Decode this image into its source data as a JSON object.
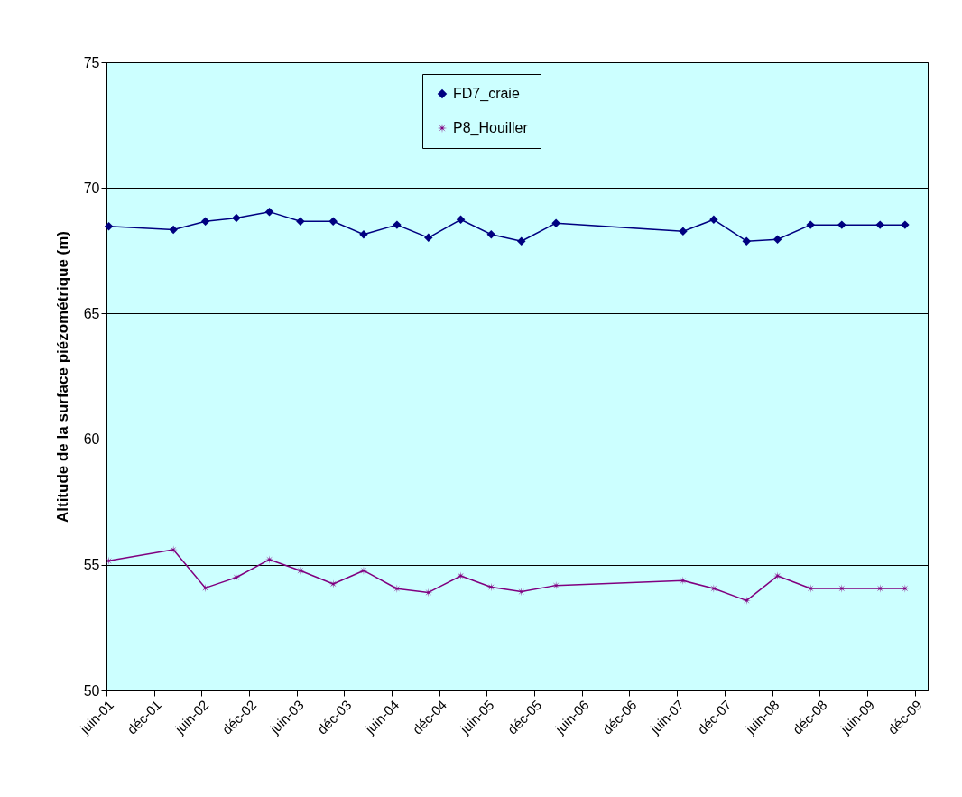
{
  "chart_data": {
    "type": "line",
    "ylabel": "Altitude de la surface piézométrique (m)",
    "x": [
      "2001-06-10",
      "2002-02-13",
      "2002-06-16",
      "2002-10-13",
      "2003-02-17",
      "2003-06-16",
      "2003-10-20",
      "2004-02-14",
      "2004-06-21",
      "2004-10-20",
      "2005-02-21",
      "2005-06-18",
      "2005-10-12",
      "2006-02-22",
      "2007-06-25",
      "2007-10-21",
      "2008-02-24",
      "2008-06-22",
      "2008-10-27",
      "2009-02-24",
      "2009-07-21",
      "2009-10-25"
    ],
    "series": [
      {
        "name": "FD7_craie",
        "color": "#000080",
        "marker": "diamond",
        "values": [
          68.47,
          68.34,
          68.67,
          68.8,
          69.05,
          68.67,
          68.67,
          68.15,
          68.53,
          68.02,
          68.74,
          68.15,
          67.88,
          68.6,
          68.27,
          68.74,
          67.88,
          67.95,
          68.53,
          68.53,
          68.53,
          68.53
        ]
      },
      {
        "name": "P8_Houiller",
        "color": "#800080",
        "marker": "star",
        "values": [
          55.16,
          55.6,
          54.08,
          54.5,
          55.21,
          54.77,
          54.24,
          54.77,
          54.05,
          53.9,
          54.56,
          54.11,
          53.93,
          54.18,
          54.37,
          54.06,
          53.58,
          54.56,
          54.06,
          54.06,
          54.06,
          54.06
        ]
      }
    ],
    "xlim": [
      "2001-06-01",
      "2010-01-20"
    ],
    "xticks": [
      {
        "value": "2001-06-01",
        "label": "juin-01"
      },
      {
        "value": "2001-12-01",
        "label": "déc-01"
      },
      {
        "value": "2002-06-01",
        "label": "juin-02"
      },
      {
        "value": "2002-12-01",
        "label": "déc-02"
      },
      {
        "value": "2003-06-01",
        "label": "juin-03"
      },
      {
        "value": "2003-12-01",
        "label": "déc-03"
      },
      {
        "value": "2004-06-01",
        "label": "juin-04"
      },
      {
        "value": "2004-12-01",
        "label": "déc-04"
      },
      {
        "value": "2005-06-01",
        "label": "juin-05"
      },
      {
        "value": "2005-12-01",
        "label": "déc-05"
      },
      {
        "value": "2006-06-01",
        "label": "juin-06"
      },
      {
        "value": "2006-12-01",
        "label": "déc-06"
      },
      {
        "value": "2007-06-01",
        "label": "juin-07"
      },
      {
        "value": "2007-12-01",
        "label": "déc-07"
      },
      {
        "value": "2008-06-01",
        "label": "juin-08"
      },
      {
        "value": "2008-12-01",
        "label": "déc-08"
      },
      {
        "value": "2009-06-01",
        "label": "juin-09"
      },
      {
        "value": "2009-12-01",
        "label": "déc-09"
      }
    ],
    "ylim": [
      50,
      75
    ],
    "yticks": [
      50,
      55,
      60,
      65,
      70,
      75
    ],
    "grid": "y",
    "legend": "top",
    "line_style": "solid"
  }
}
